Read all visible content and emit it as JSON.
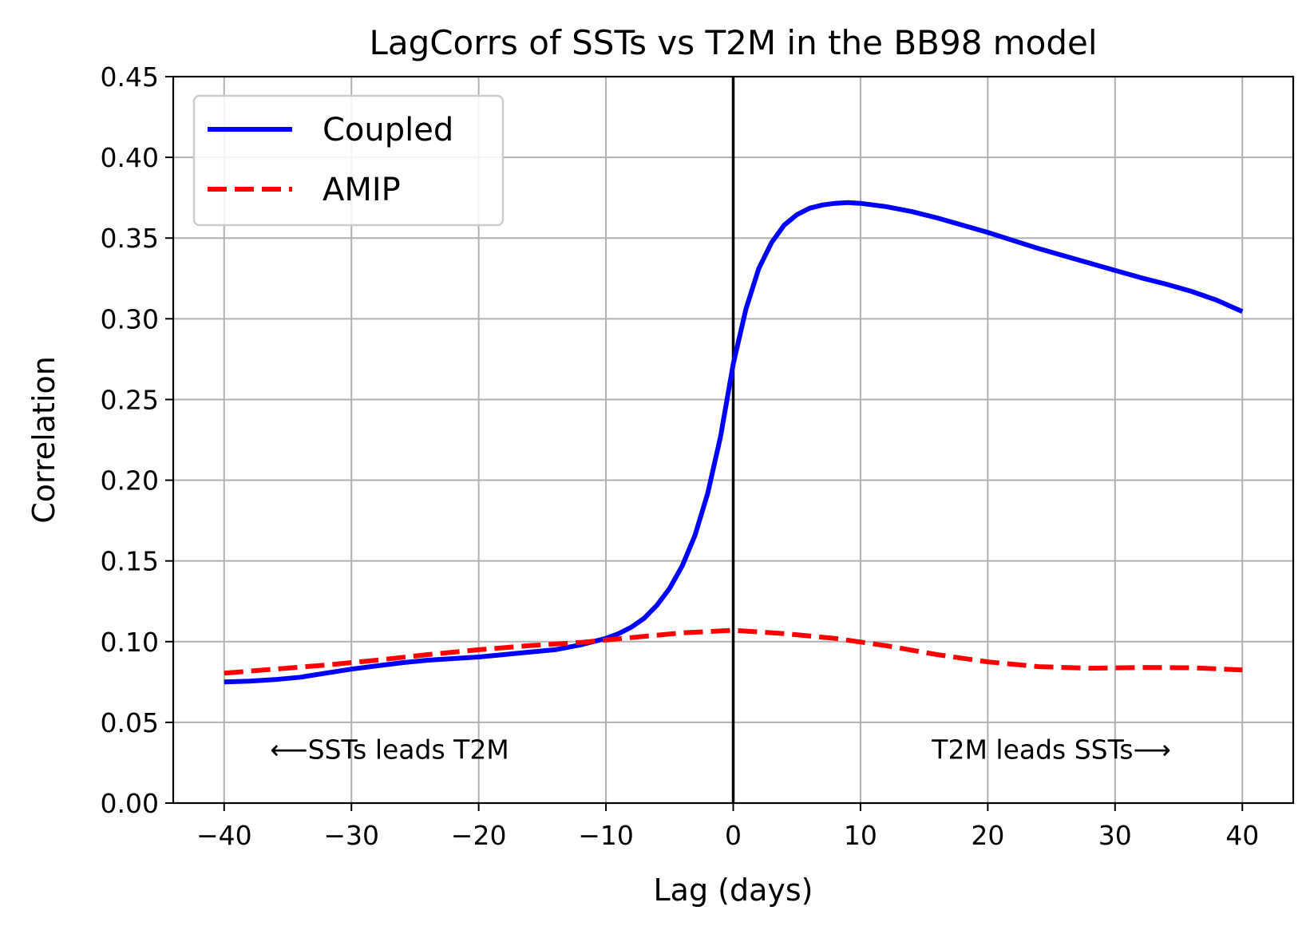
{
  "chart_data": {
    "type": "line",
    "title": "LagCorrs of SSTs vs T2M in the BB98 model",
    "xlabel": "Lag (days)",
    "ylabel": "Correlation",
    "xlim": [
      -44,
      44
    ],
    "ylim": [
      0,
      0.45
    ],
    "xticks": [
      -40,
      -30,
      -20,
      -10,
      0,
      10,
      20,
      30,
      40
    ],
    "xtick_labels": [
      "−40",
      "−30",
      "−20",
      "−10",
      "0",
      "10",
      "20",
      "30",
      "40"
    ],
    "yticks": [
      0,
      0.05,
      0.1,
      0.15,
      0.2,
      0.25,
      0.3,
      0.35,
      0.4,
      0.45
    ],
    "ytick_labels": [
      "0.00",
      "0.05",
      "0.10",
      "0.15",
      "0.20",
      "0.25",
      "0.30",
      "0.35",
      "0.40",
      "0.45"
    ],
    "grid": true,
    "legend_position": "top-left",
    "vline_x": 0,
    "series": [
      {
        "name": "Coupled",
        "color": "#0000ff",
        "style": "solid",
        "x": [
          -40,
          -38,
          -36,
          -34,
          -32,
          -30,
          -28,
          -26,
          -24,
          -22,
          -20,
          -18,
          -16,
          -14,
          -12,
          -10,
          -9,
          -8,
          -7,
          -6,
          -5,
          -4,
          -3,
          -2,
          -1,
          0,
          1,
          2,
          3,
          4,
          5,
          6,
          7,
          8,
          9,
          10,
          12,
          14,
          16,
          18,
          20,
          22,
          24,
          26,
          28,
          30,
          32,
          34,
          36,
          38,
          40
        ],
        "values": [
          0.075,
          0.0755,
          0.0765,
          0.078,
          0.0805,
          0.083,
          0.085,
          0.087,
          0.0885,
          0.0895,
          0.0905,
          0.092,
          0.0935,
          0.095,
          0.098,
          0.102,
          0.105,
          0.109,
          0.1145,
          0.1225,
          0.133,
          0.147,
          0.166,
          0.192,
          0.227,
          0.272,
          0.306,
          0.331,
          0.347,
          0.358,
          0.3645,
          0.3685,
          0.3705,
          0.3715,
          0.372,
          0.3715,
          0.3695,
          0.3665,
          0.3625,
          0.358,
          0.3535,
          0.3485,
          0.3435,
          0.339,
          0.3345,
          0.33,
          0.3255,
          0.3215,
          0.317,
          0.3115,
          0.3045
        ]
      },
      {
        "name": "AMIP",
        "color": "#ff0000",
        "style": "dashed",
        "x": [
          -40,
          -36,
          -32,
          -28,
          -24,
          -20,
          -16,
          -12,
          -8,
          -4,
          0,
          4,
          8,
          12,
          16,
          20,
          24,
          28,
          32,
          36,
          40
        ],
        "values": [
          0.0805,
          0.083,
          0.0855,
          0.0885,
          0.092,
          0.095,
          0.0975,
          0.0995,
          0.1025,
          0.1055,
          0.107,
          0.105,
          0.102,
          0.0975,
          0.092,
          0.0875,
          0.0845,
          0.0835,
          0.084,
          0.0838,
          0.0825
        ]
      }
    ],
    "annotations": [
      {
        "name": "left",
        "text": "SSTs leads T2M",
        "arrow": "⟵",
        "x": -27
      },
      {
        "name": "right",
        "text": "T2M leads SSTs",
        "arrow": "⟶",
        "x": 25
      }
    ]
  }
}
